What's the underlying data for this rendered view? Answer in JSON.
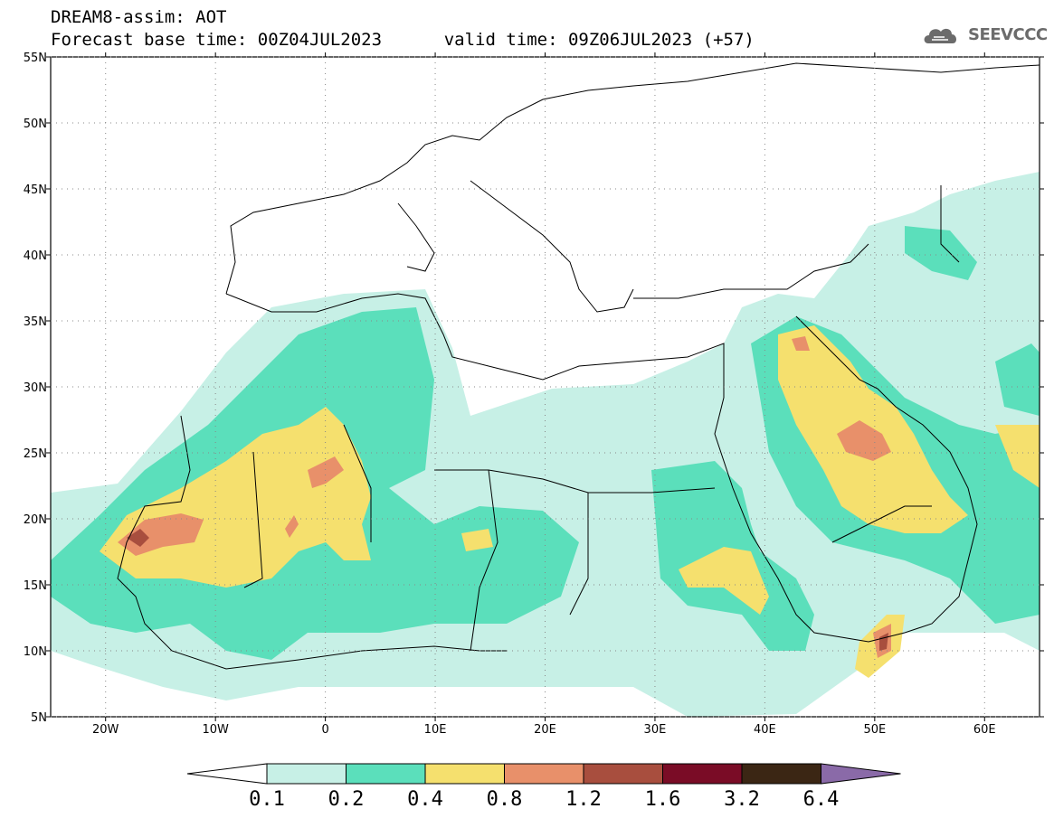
{
  "header": {
    "title": "DREAM8-assim: AOT",
    "base_time_label": "Forecast base time: 00Z04JUL2023",
    "valid_time_label": "valid time: 09Z06JUL2023 (+57)"
  },
  "logo": {
    "text": "SEEVCCC",
    "icon": "cloud-logo-icon"
  },
  "axes": {
    "lat_ticks": [
      "55N",
      "50N",
      "45N",
      "40N",
      "35N",
      "30N",
      "25N",
      "20N",
      "15N",
      "10N",
      "5N"
    ],
    "lon_ticks": [
      "20W",
      "10W",
      "0",
      "10E",
      "20E",
      "30E",
      "40E",
      "50E",
      "60E"
    ],
    "lon_range": [
      -25,
      65
    ],
    "lat_range": [
      5,
      55
    ]
  },
  "colorbar": {
    "labels": [
      "0.1",
      "0.2",
      "0.4",
      "0.8",
      "1.2",
      "1.6",
      "3.2",
      "6.4"
    ],
    "colors": [
      "#ffffff",
      "#c7f0e6",
      "#5bdfbb",
      "#f5e06e",
      "#e8906a",
      "#a84e3e",
      "#7a0c26",
      "#3b2614",
      "#8a6aa8"
    ]
  }
}
